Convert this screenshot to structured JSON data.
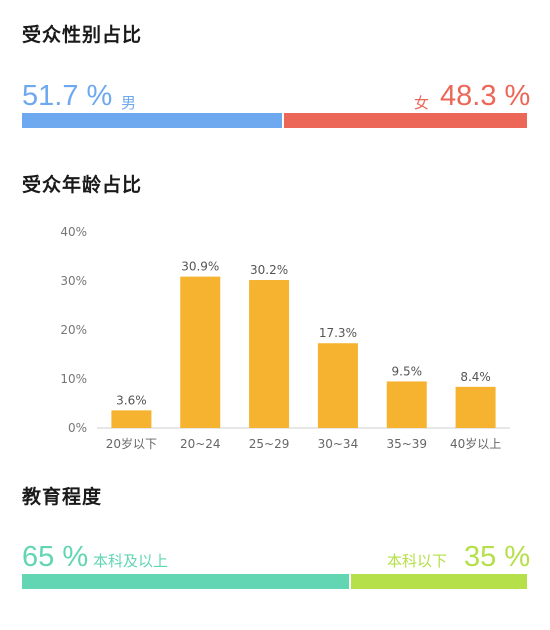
{
  "gender": {
    "title": "受众性别占比",
    "male": {
      "pct": "51.7 %",
      "label": "男",
      "value": 51.7,
      "color": "#6ea9f0"
    },
    "female": {
      "pct": "48.3 %",
      "label": "女",
      "value": 48.3,
      "color": "#ec6757"
    }
  },
  "age": {
    "title": "受众年龄占比"
  },
  "education": {
    "title": "教育程度",
    "above": {
      "pct": "65 %",
      "label": "本科及以上",
      "value": 65,
      "color": "#62d6b3"
    },
    "below": {
      "pct": "35 %",
      "label": "本科以下",
      "value": 35,
      "color": "#b5e04a"
    }
  },
  "chart_data": {
    "type": "bar",
    "categories": [
      "20岁以下",
      "20~24",
      "25~29",
      "30~34",
      "35~39",
      "40岁以上"
    ],
    "values": [
      3.6,
      30.9,
      30.2,
      17.3,
      9.5,
      8.4
    ],
    "value_labels": [
      "3.6%",
      "30.9%",
      "30.2%",
      "17.3%",
      "9.5%",
      "8.4%"
    ],
    "ylim": [
      0,
      40
    ],
    "yticks": [
      "0%",
      "10%",
      "20%",
      "30%",
      "40%"
    ],
    "ytick_values": [
      0,
      10,
      20,
      30,
      40
    ],
    "color": "#f5b32f",
    "grid": false
  }
}
